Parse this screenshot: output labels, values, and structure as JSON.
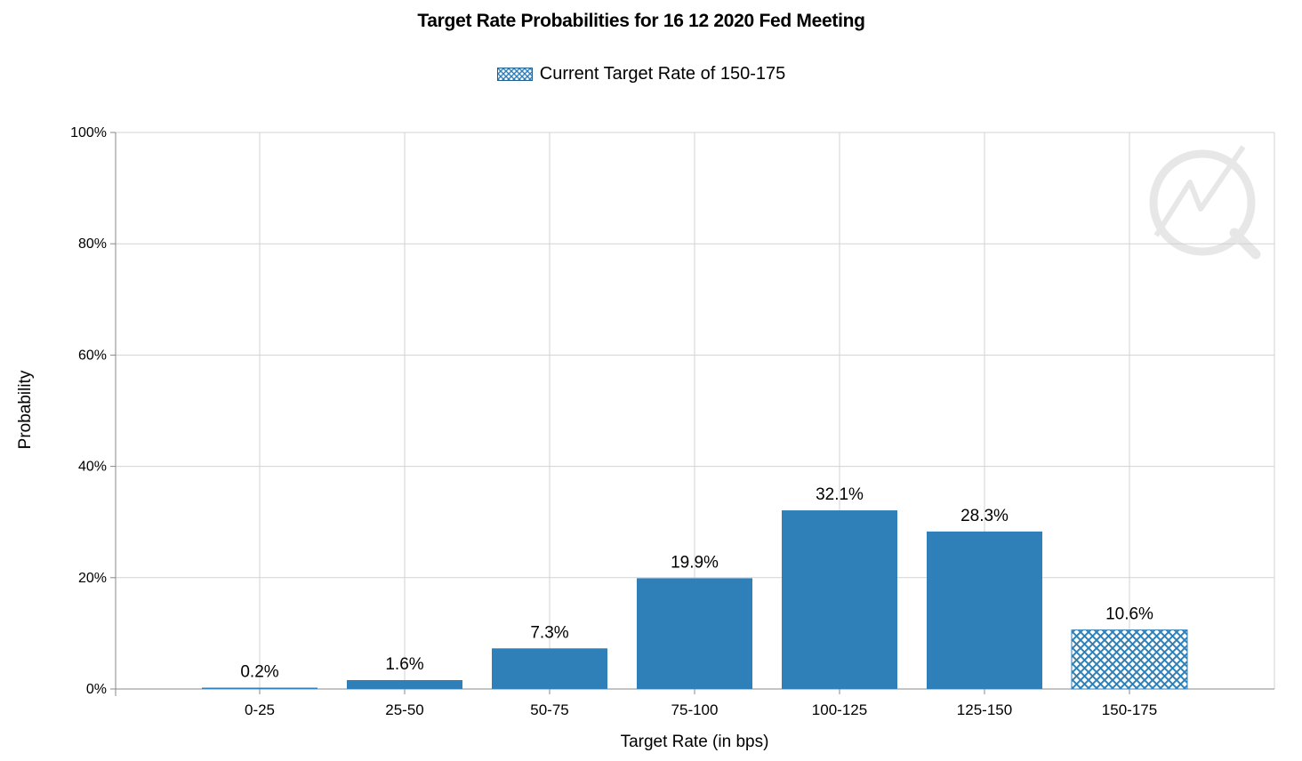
{
  "chart_data": {
    "type": "bar",
    "title": "Target Rate Probabilities for 16 12 2020 Fed Meeting",
    "legend": [
      "Current Target Rate of 150-175"
    ],
    "legend_position": "top-center",
    "xlabel": "Target Rate (in bps)",
    "ylabel": "Probability",
    "categories": [
      "0-25",
      "25-50",
      "50-75",
      "75-100",
      "100-125",
      "125-150",
      "150-175"
    ],
    "values": [
      0.2,
      1.6,
      7.3,
      19.9,
      32.1,
      28.3,
      10.6
    ],
    "data_labels": [
      "0.2%",
      "1.6%",
      "7.3%",
      "19.9%",
      "32.1%",
      "28.3%",
      "10.6%"
    ],
    "highlighted_category": "150-175",
    "ylim": [
      0,
      100
    ],
    "yticks": [
      0,
      20,
      40,
      60,
      80,
      100
    ],
    "ytick_labels": [
      "0%",
      "20%",
      "40%",
      "60%",
      "80%",
      "100%"
    ],
    "grid": true,
    "colors": {
      "bar": "#2f7fb8",
      "grid": "#d3d3d3",
      "axis": "#888888"
    }
  }
}
